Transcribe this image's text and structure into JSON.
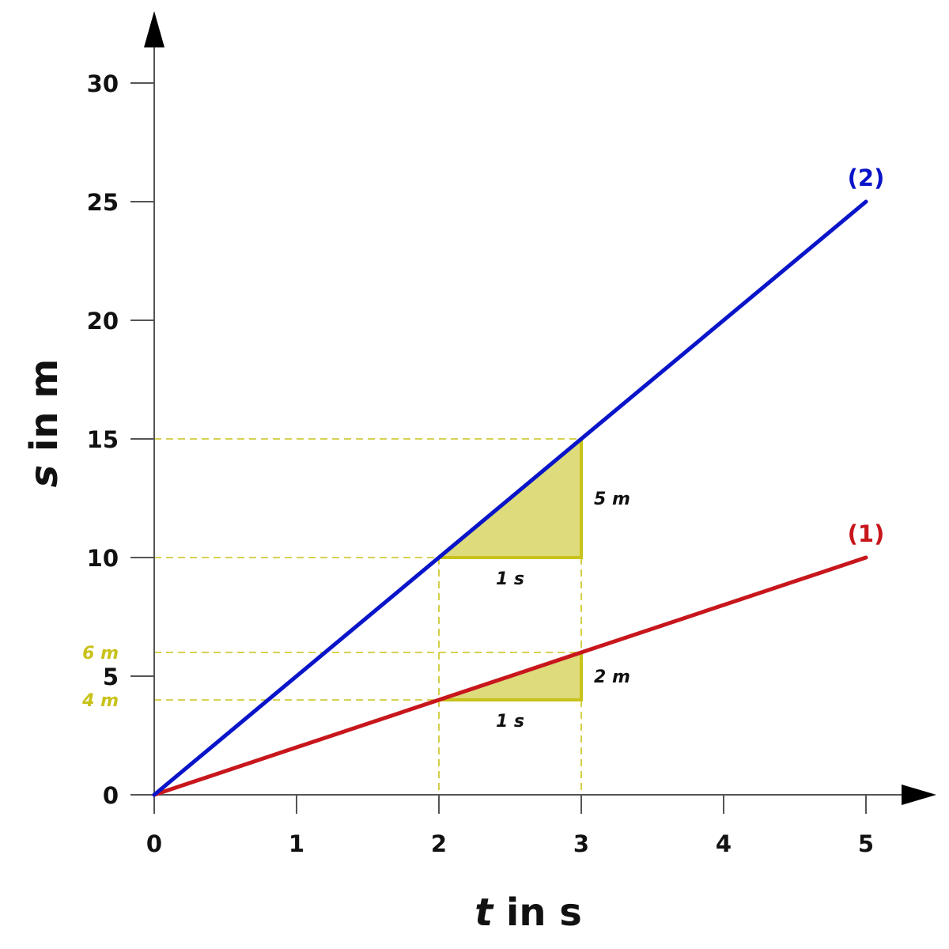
{
  "chart_data": {
    "type": "line",
    "xlabel": {
      "var": "t",
      "unit": " in s"
    },
    "ylabel": {
      "var": "s",
      "unit": " in m"
    },
    "xlim": [
      0,
      5
    ],
    "ylim": [
      0,
      30
    ],
    "x_ticks": [
      0,
      1,
      2,
      3,
      4,
      5
    ],
    "y_ticks": [
      0,
      5,
      10,
      15,
      20,
      25,
      30
    ],
    "grid": false,
    "series": [
      {
        "name": "(1)",
        "color": "#c8161d",
        "x": [
          0,
          5
        ],
        "y": [
          0,
          10
        ]
      },
      {
        "name": "(2)",
        "color": "#0a14c8",
        "x": [
          0,
          5
        ],
        "y": [
          0,
          25
        ]
      }
    ],
    "slope_triangles": [
      {
        "series": "(2)",
        "x": [
          2,
          3
        ],
        "y": [
          10,
          15
        ],
        "dx_label": "1 s",
        "dy_label": "5 m"
      },
      {
        "series": "(1)",
        "x": [
          2,
          3
        ],
        "y": [
          4,
          6
        ],
        "dx_label": "1 s",
        "dy_label": "2 m"
      }
    ],
    "y_annotations": [
      {
        "y": 6,
        "label": "6 m"
      },
      {
        "y": 4,
        "label": "4 m"
      }
    ],
    "highlight_color": "#c8c21a",
    "highlight_fill": "#dedb7c",
    "axis_color": "#555555"
  }
}
